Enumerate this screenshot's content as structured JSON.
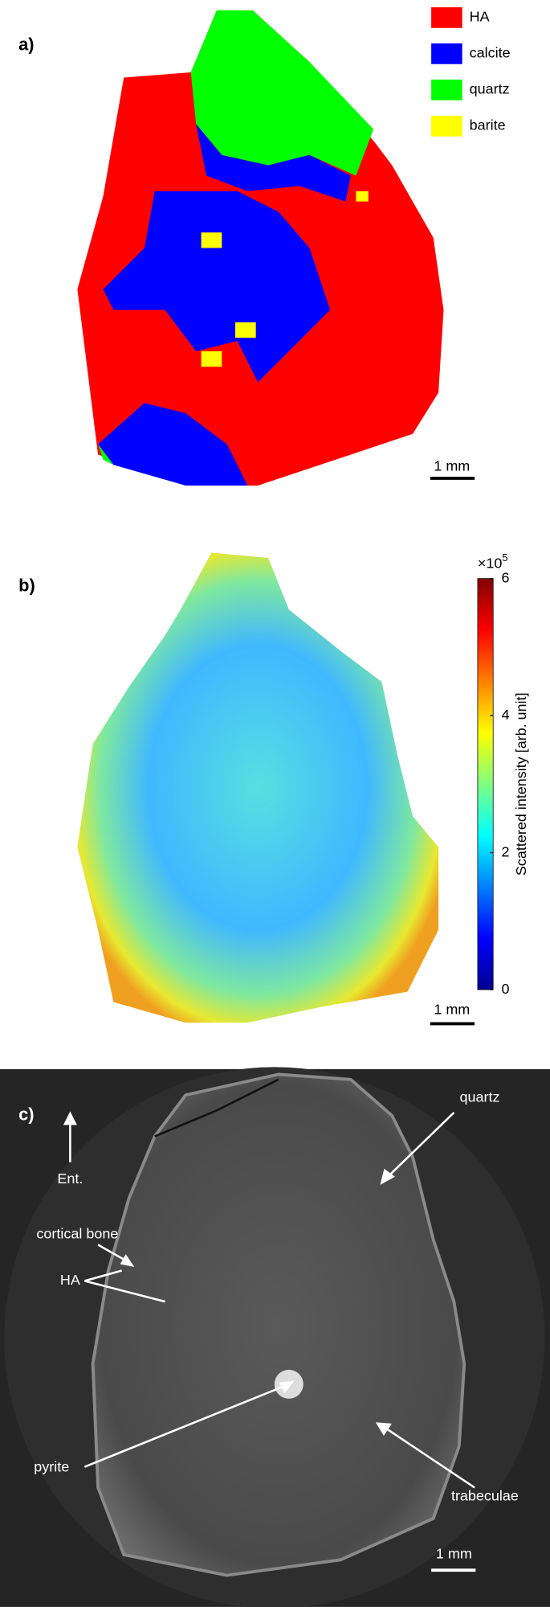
{
  "panels": [
    {
      "label": "a)",
      "legend": [
        {
          "name": "HA",
          "color": "#ff0000"
        },
        {
          "name": "calcite",
          "color": "#0000ff"
        },
        {
          "name": "quartz",
          "color": "#00ff00"
        },
        {
          "name": "barite",
          "color": "#ffff00"
        }
      ],
      "scale_bar": "1 mm"
    },
    {
      "label": "b)",
      "colorbar": {
        "label": "Scattered intensity [arb. unit]",
        "multiplier": "×10",
        "exponent": "5",
        "lim": [
          0,
          6
        ],
        "ticks": [
          0,
          2,
          4,
          6
        ]
      },
      "scale_bar": "1 mm"
    },
    {
      "label": "c)",
      "annotations": [
        "quartz",
        "Ent.",
        "cortical bone",
        "HA",
        "pyrite",
        "trabeculae"
      ],
      "scale_bar": "1 mm"
    }
  ]
}
